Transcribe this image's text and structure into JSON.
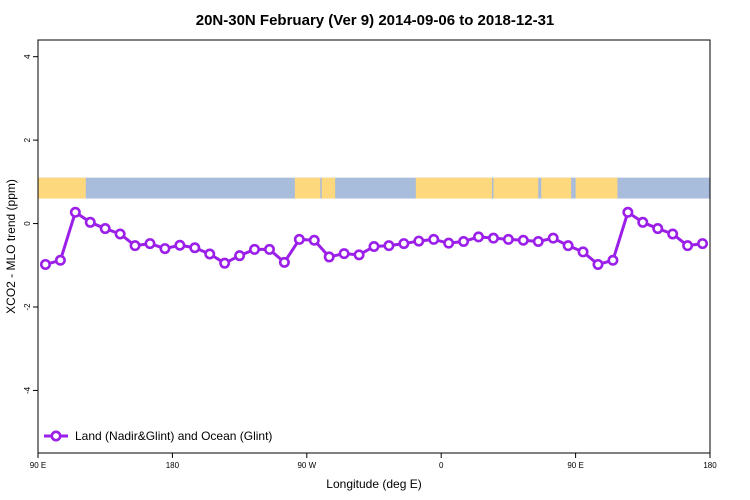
{
  "chart_data": {
    "type": "line",
    "title": "20N-30N February (Ver 9)   2014-09-06 to 2018-12-31",
    "xlabel": "Longitude (deg E)",
    "ylabel": "XCO2 - MLO trend (ppm)",
    "xlim": [
      90,
      540
    ],
    "ylim": [
      -5.5,
      4.4
    ],
    "x_ticks": [
      {
        "value": 90,
        "label": "90 E"
      },
      {
        "value": 180,
        "label": "180"
      },
      {
        "value": 270,
        "label": "90 W"
      },
      {
        "value": 360,
        "label": "0"
      },
      {
        "value": 450,
        "label": "90 E"
      },
      {
        "value": 540,
        "label": "180"
      }
    ],
    "y_ticks": [
      {
        "value": 4,
        "label": "4"
      },
      {
        "value": 2,
        "label": "2"
      },
      {
        "value": 0,
        "label": "0"
      },
      {
        "value": -2,
        "label": "-2"
      },
      {
        "value": -4,
        "label": "-4"
      }
    ],
    "grid": false,
    "legend_position": "bottom-left",
    "map_band": {
      "y_range": [
        0.6,
        1.1
      ],
      "land_color": "#fdd87d",
      "ocean_color": "#a8bcdc"
    },
    "series": [
      {
        "name": "Land (Nadir&Glint) and Ocean (Glint)",
        "color": "#9b1fe8",
        "x": [
          95,
          105,
          115,
          125,
          135,
          145,
          155,
          165,
          175,
          185,
          195,
          205,
          215,
          225,
          235,
          245,
          255,
          265,
          275,
          285,
          295,
          305,
          315,
          325,
          335,
          345,
          355,
          365,
          375,
          385,
          395,
          405,
          415,
          425,
          435,
          445,
          455,
          465,
          475,
          485,
          495,
          505,
          515,
          525,
          535
        ],
        "y": [
          -0.98,
          -0.88,
          0.27,
          0.03,
          -0.12,
          -0.25,
          -0.53,
          -0.48,
          -0.6,
          -0.52,
          -0.58,
          -0.73,
          -0.95,
          -0.77,
          -0.62,
          -0.62,
          -0.93,
          -0.38,
          -0.4,
          -0.8,
          -0.72,
          -0.75,
          -0.55,
          -0.53,
          -0.48,
          -0.42,
          -0.38,
          -0.47,
          -0.43,
          -0.32,
          -0.35,
          -0.38,
          -0.4,
          -0.43,
          -0.35,
          -0.53,
          -0.68,
          -0.98,
          -0.88,
          0.27,
          0.03,
          -0.12,
          -0.25,
          -0.53,
          -0.48
        ]
      }
    ]
  }
}
